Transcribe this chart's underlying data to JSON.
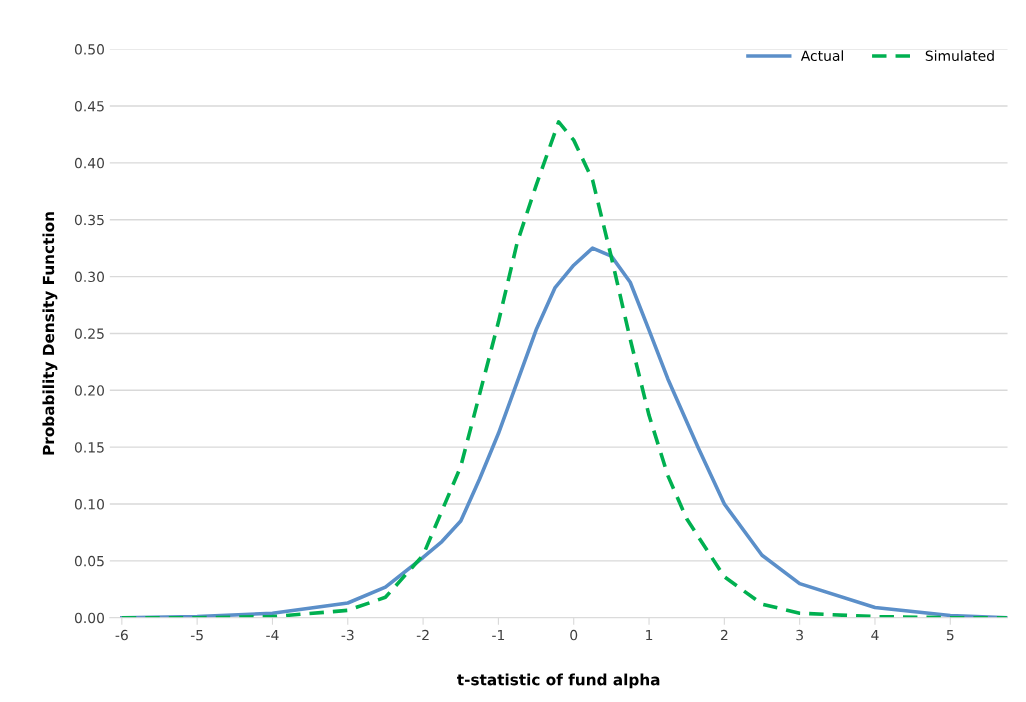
{
  "chart_data": {
    "type": "line",
    "xlabel": "t-statistic of fund alpha",
    "ylabel": "Probability Density Function",
    "xlim": [
      -6.16,
      5.76
    ],
    "xticks": [
      -6,
      -5,
      -4,
      -3,
      -2,
      -1,
      0,
      1,
      2,
      3,
      4,
      5
    ],
    "ylim": [
      0,
      0.5
    ],
    "yticks": [
      {
        "value": 0,
        "label": "0.00"
      },
      {
        "value": 0.05,
        "label": "0.05"
      },
      {
        "value": 0.1,
        "label": "0.10"
      },
      {
        "value": 0.15,
        "label": "0.15"
      },
      {
        "value": 0.2,
        "label": "0.20"
      },
      {
        "value": 0.25,
        "label": "0.25"
      },
      {
        "value": 0.3,
        "label": "0.30"
      },
      {
        "value": 0.35,
        "label": "0.35"
      },
      {
        "value": 0.4,
        "label": "0.40"
      },
      {
        "value": 0.45,
        "label": "0.45"
      },
      {
        "value": 0.5,
        "label": "0.50"
      }
    ],
    "grid": "y",
    "legend": "top right",
    "series": [
      {
        "name": "Actual",
        "color": "#5b8fc9",
        "line_style": "solid",
        "x": [
          -6,
          -5,
          -4,
          -3,
          -2.5,
          -2,
          -1.75,
          -1.5,
          -1.25,
          -1,
          -0.5,
          -0.25,
          0,
          0.25,
          0.5,
          0.75,
          1,
          1.25,
          1.65,
          2,
          2.5,
          3,
          4,
          5,
          5.75
        ],
        "values": [
          0.0,
          0.001,
          0.004,
          0.013,
          0.027,
          0.053,
          0.067,
          0.085,
          0.122,
          0.162,
          0.253,
          0.29,
          0.31,
          0.325,
          0.318,
          0.295,
          0.253,
          0.21,
          0.15,
          0.1,
          0.055,
          0.03,
          0.009,
          0.002,
          0.0
        ]
      },
      {
        "name": "Simulated",
        "color": "#00b050",
        "line_style": "dashed",
        "x": [
          -6,
          -5,
          -4,
          -3,
          -2.5,
          -2,
          -1.5,
          -1,
          -0.75,
          -0.5,
          -0.2,
          0,
          0.25,
          0.5,
          0.75,
          1,
          1.25,
          1.5,
          2,
          2.5,
          3,
          4,
          5,
          5.75
        ],
        "values": [
          0.0,
          0.0,
          0.001,
          0.0065,
          0.018,
          0.055,
          0.133,
          0.26,
          0.33,
          0.38,
          0.436,
          0.42,
          0.385,
          0.317,
          0.245,
          0.178,
          0.125,
          0.087,
          0.036,
          0.012,
          0.004,
          0.001,
          0.0,
          0.0
        ]
      }
    ]
  }
}
